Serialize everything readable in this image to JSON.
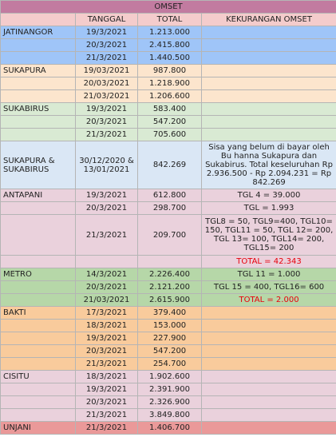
{
  "title": "OMSET",
  "headers": [
    "",
    "TANGGAL",
    "TOTAL",
    "KEKURANGAN OMSET"
  ],
  "jatinangor": {
    "name": "JATINANGOR",
    "rows": [
      {
        "date": "19/3/2021",
        "total": "1.213.000"
      },
      {
        "date": "20/3/2021",
        "total": "2.415.800"
      },
      {
        "date": "21/3/2021",
        "total": "1.440.500"
      }
    ]
  },
  "sukapura": {
    "name": "SUKAPURA",
    "rows": [
      {
        "date": "19/03/2021",
        "total": "987.800"
      },
      {
        "date": "20/03/2021",
        "total": "1.218.900"
      },
      {
        "date": "21/03/2021",
        "total": "1.206.600"
      }
    ]
  },
  "sukabirus": {
    "name": "SUKABIRUS",
    "rows": [
      {
        "date": "19/3/2021",
        "total": "583.400"
      },
      {
        "date": "20/3/2021",
        "total": "547.200"
      },
      {
        "date": "21/3/2021",
        "total": "705.600"
      }
    ]
  },
  "combined": {
    "name": "SUKAPURA & SUKABIRUS",
    "date": "30/12/2020 & 13/01/2021",
    "total": "842.269",
    "note": "Sisa yang belum di bayar oleh Bu hanna Sukapura dan Sukabirus. Total keseluruhan Rp 2.936.500 - Rp 2.094.231 = Rp 842.269"
  },
  "antapani": {
    "name": "ANTAPANI",
    "rows": [
      {
        "date": "19/3/2021",
        "total": "612.800",
        "note": "TGL 4 = 39.000"
      },
      {
        "date": "20/3/2021",
        "total": "298.700",
        "note": "TGL = 1.993"
      },
      {
        "date": "21/3/2021",
        "total": "209.700",
        "note": "TGL8 = 50, TGL9=400, TGL10= 150, TGL11 = 50, TGL 12= 200, TGL 13= 100, TGL14= 200, TGL15= 200"
      }
    ],
    "total_note": "TOTAL = 42.343"
  },
  "metro": {
    "name": "METRO",
    "rows": [
      {
        "date": "14/3/2021",
        "total": "2.226.400",
        "note": "TGL 11 = 1.000"
      },
      {
        "date": "20/3/2021",
        "total": "2.121.200",
        "note": "TGL 15 = 400, TGL16= 600"
      },
      {
        "date": "21/03/2021",
        "total": "2.615.900",
        "note": "TOTAL = 2.000"
      }
    ]
  },
  "bakti": {
    "name": "BAKTI",
    "rows": [
      {
        "date": "17/3/2021",
        "total": "379.400"
      },
      {
        "date": "18/3/2021",
        "total": "153.000"
      },
      {
        "date": "19/3/2021",
        "total": "227.900"
      },
      {
        "date": "20/3/2021",
        "total": "547.200"
      },
      {
        "date": "21/3/2021",
        "total": "254.700"
      }
    ]
  },
  "cisitu": {
    "name": "CISITU",
    "rows": [
      {
        "date": "18/3/2021",
        "total": "1.902.600"
      },
      {
        "date": "19/3/2021",
        "total": "2.391.900"
      },
      {
        "date": "20/3/2021",
        "total": "2.326.900"
      },
      {
        "date": "21/3/2021",
        "total": "3.849.800"
      }
    ]
  },
  "unjani": {
    "name": "UNJANI",
    "rows": [
      {
        "date": "21/3/2021",
        "total": "1.406.700"
      }
    ]
  },
  "colors": {
    "title_bg": "#c27ba0",
    "header_bg": "#f4cccc",
    "jatinangor": "#9fc5f8",
    "sukapura": "#fce5cd",
    "sukabirus": "#d9ead3",
    "combined": "#dae7f5",
    "antapani": "#ead1dc",
    "metro": "#b6d7a8",
    "bakti": "#f9cb9c",
    "cisitu": "#ead1dc",
    "unjani": "#ea9999",
    "total_note": "#e8000b"
  }
}
